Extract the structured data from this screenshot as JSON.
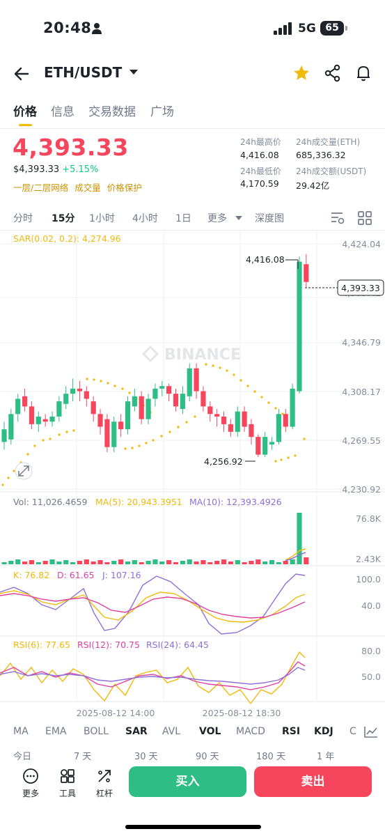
{
  "status_bar": {
    "time": "20:48",
    "network": "5G",
    "battery": "65"
  },
  "header": {
    "pair": "ETH/USDT"
  },
  "tabs": [
    "价格",
    "信息",
    "交易数据",
    "广场"
  ],
  "ticker": {
    "price": "4,393.33",
    "usd_price": "$4,393.33",
    "change": "+5.15%",
    "links": [
      "一层/二层网络",
      "成交量",
      "价格保护"
    ],
    "high_label": "24h最高价",
    "high_value": "4,416.08",
    "low_label": "24h最低价",
    "low_value": "4,170.59",
    "vol_label": "24h成交量(ETH)",
    "vol_value": "685,336.32",
    "turnover_label": "24h成交额(USDT)",
    "turnover_value": "29.42亿"
  },
  "ranges": [
    "分时",
    "15分",
    "1小时",
    "4小时",
    "1日",
    "更多",
    "深度图"
  ],
  "main_chart": {
    "sar_label": "SAR(0.02, 0.2): 4,274.96",
    "watermark": "BINANCE",
    "y_labels": [
      "4,424.04",
      "4,385.41",
      "4,346.79",
      "4,308.17",
      "4,269.55",
      "4,230.92"
    ],
    "current_price_tag": "4,393.33",
    "high_marker": "4,416.08",
    "low_marker": "4,256.92",
    "colors": {
      "up": "#2ebd85",
      "down": "#f6465d",
      "sar": "#f0b90b"
    }
  },
  "volume": {
    "label": "Vol: 11,026.4659",
    "ma5": "MA(5): 20,943.3951",
    "ma10": "MA(10): 12,393.4926",
    "y_max": "76.8K",
    "y_min": "2.43K"
  },
  "kdj": {
    "k": "K: 76.82",
    "d": "D: 61.65",
    "j": "J: 107.16",
    "y_top": "100.0",
    "y_mid": "40.0"
  },
  "rsi": {
    "rsi6": "RSI(6): 77.65",
    "rsi12": "RSI(12): 70.75",
    "rsi24": "RSI(24): 64.45",
    "y_top": "80.0",
    "y_mid": "50.0"
  },
  "x_axis": [
    "2025-08-12 14:00",
    "2025-08-12 18:30"
  ],
  "indicators": [
    "MA",
    "EMA",
    "BOLL",
    "SAR",
    "AVL",
    "VOL",
    "MACD",
    "RSI",
    "KDJ",
    "C"
  ],
  "time_filters": [
    "今日",
    "7 天",
    "30 天",
    "90 天",
    "180 天",
    "1 年"
  ],
  "bottom": {
    "more": "更多",
    "tools": "工具",
    "leverage": "杠杆",
    "buy": "买入",
    "sell": "卖出"
  }
}
